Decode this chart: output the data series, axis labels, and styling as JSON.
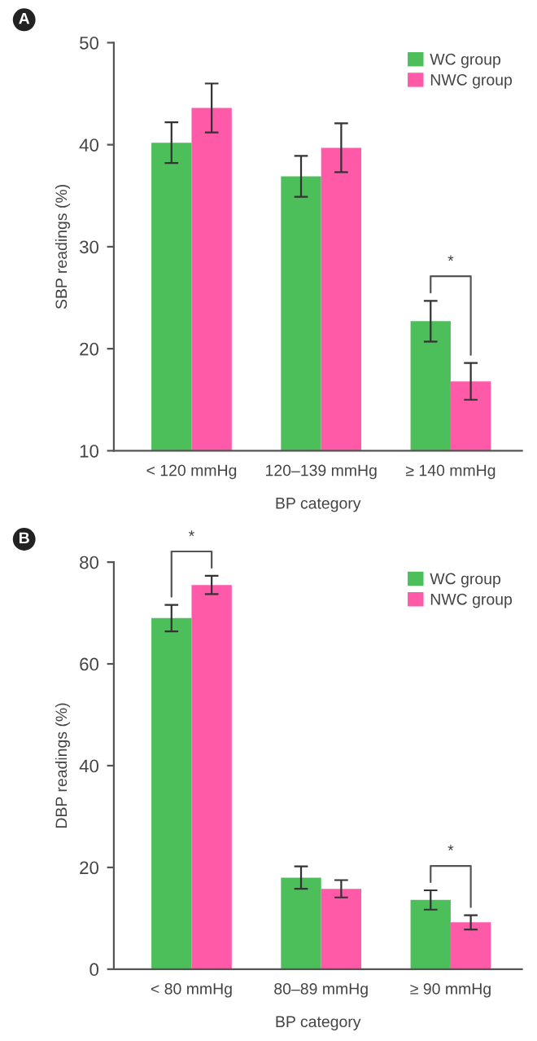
{
  "chart_data": [
    {
      "type": "bar",
      "title": "A",
      "xlabel": "BP category",
      "ylabel": "SBP readings (%)",
      "categories": [
        "< 120 mmHg",
        "120–139 mmHg",
        "≥ 140 mmHg"
      ],
      "series": [
        {
          "name": "WC group",
          "color": "#4dbf5a",
          "values": [
            40.2,
            36.9,
            22.7
          ],
          "errors": [
            2.0,
            2.0,
            2.0
          ]
        },
        {
          "name": "NWC group",
          "color": "#ff5aa8",
          "values": [
            43.6,
            39.7,
            16.8
          ],
          "errors": [
            2.4,
            2.4,
            1.8
          ]
        }
      ],
      "ylim": [
        10,
        50
      ],
      "yticks": [
        10,
        20,
        30,
        40,
        50
      ],
      "legend": "top right",
      "grid": false,
      "annotations": [
        "*"
      ]
    },
    {
      "type": "bar",
      "title": "B",
      "xlabel": "BP category",
      "ylabel": "DBP readings (%)",
      "categories": [
        "< 80 mmHg",
        "80–89 mmHg",
        "≥ 90 mmHg"
      ],
      "series": [
        {
          "name": "WC group",
          "color": "#4dbf5a",
          "values": [
            69.0,
            18.0,
            13.6
          ],
          "errors": [
            2.6,
            2.2,
            1.9
          ]
        },
        {
          "name": "NWC group",
          "color": "#ff5aa8",
          "values": [
            75.5,
            15.8,
            9.2
          ],
          "errors": [
            1.8,
            1.7,
            1.4
          ]
        }
      ],
      "ylim": [
        0,
        80
      ],
      "yticks": [
        0,
        20,
        40,
        60,
        80
      ],
      "legend": "top right",
      "grid": false,
      "annotations": [
        "*",
        "*"
      ]
    }
  ]
}
